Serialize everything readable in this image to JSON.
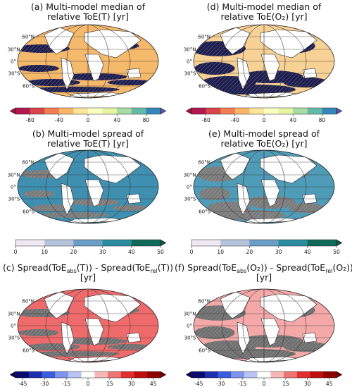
{
  "lat_labels": [
    "60°N",
    "30°N",
    "0°",
    "30°S",
    "60°S"
  ],
  "panels": [
    {
      "title_lines": [
        [
          "(a) Multi-model median of"
        ],
        [
          "relative ToE(T) [yr]"
        ]
      ],
      "ocean_color": "#f5b96c",
      "blob_color": "#1b1b4f",
      "colorbar": {
        "lim": [
          -100,
          100
        ],
        "ticks": [
          -80,
          -40,
          0,
          40,
          80
        ],
        "colors": [
          "#b2184f",
          "#d9434a",
          "#f07e4f",
          "#fbb569",
          "#fde59a",
          "#fdfdc2",
          "#e6f4a1",
          "#a9dca4",
          "#62bba8",
          "#3487bb"
        ],
        "extend": "both",
        "ext_colors": [
          "#9b1040",
          "#5e4fa2"
        ]
      }
    },
    {
      "title_lines": [
        [
          "(b) Multi-model spread of"
        ],
        [
          "relative ToE(T) [yr]"
        ]
      ],
      "ocean_color": "#3f8fb0",
      "blob_color": "#7a7a7a",
      "colorbar": {
        "lim": [
          0,
          50
        ],
        "ticks": [
          0,
          10,
          20,
          30,
          40,
          50
        ],
        "colors": [
          "#efe7f2",
          "#b6c3dc",
          "#6a9ec7",
          "#2b8c9f",
          "#0f6a5b"
        ],
        "extend": "max",
        "ext_colors": [
          "#0f6a5b",
          "#0b5546"
        ]
      }
    },
    {
      "title_lines": [
        [
          "(c) Spread(ToE",
          {
            "sub": "abs"
          },
          "(T)) - Spread(ToE",
          {
            "sub": "rel"
          },
          "(T))"
        ],
        [
          "[yr]"
        ]
      ],
      "ocean_color": "#ef6a6a",
      "blob_color": "#6f6f6f",
      "colorbar": {
        "lim": [
          -50,
          50
        ],
        "ticks": [
          -45,
          -30,
          -15,
          0,
          15,
          30,
          45
        ],
        "colors": [
          "#0a0a70",
          "#1c2fb0",
          "#3a5ee0",
          "#7d93ee",
          "#b9c4f5",
          "#ffffff",
          "#f8b7b7",
          "#ef7474",
          "#e03030",
          "#c00d0d",
          "#900000"
        ],
        "extend": "both",
        "ext_colors": [
          "#060650",
          "#6e0000"
        ]
      }
    },
    {
      "title_lines": [
        [
          "(d) Multi-model median of"
        ],
        [
          "relative ToE(O₂) [yr]"
        ]
      ],
      "ocean_color": "#f8d195",
      "blob_color": "#1b1b4f",
      "colorbar": {
        "lim": [
          -100,
          100
        ],
        "ticks": [
          -80,
          -40,
          0,
          40,
          80
        ],
        "colors": [
          "#b2184f",
          "#d9434a",
          "#f07e4f",
          "#fbb569",
          "#fde59a",
          "#fdfdc2",
          "#e6f4a1",
          "#a9dca4",
          "#62bba8",
          "#3487bb"
        ],
        "extend": "both",
        "ext_colors": [
          "#9b1040",
          "#5e4fa2"
        ]
      }
    },
    {
      "title_lines": [
        [
          "(e) Multi-model spread of"
        ],
        [
          "relative ToE(O₂) [yr]"
        ]
      ],
      "ocean_color": "#4f9cb8",
      "blob_color": "#7a7a7a",
      "colorbar": {
        "lim": [
          0,
          50
        ],
        "ticks": [
          0,
          10,
          20,
          30,
          40,
          50
        ],
        "colors": [
          "#efe7f2",
          "#b6c3dc",
          "#6a9ec7",
          "#2b8c9f",
          "#0f6a5b"
        ],
        "extend": "max",
        "ext_colors": [
          "#0f6a5b",
          "#0b5546"
        ]
      }
    },
    {
      "title_lines": [
        [
          "(f) Spread(ToE",
          {
            "sub": "abs"
          },
          "(O₂)) - Spread(ToE",
          {
            "sub": "rel"
          },
          "(O₂))"
        ],
        [
          "[yr]"
        ]
      ],
      "ocean_color": "#f4a8a8",
      "blob_color": "#6f6f6f",
      "colorbar": {
        "lim": [
          -50,
          50
        ],
        "ticks": [
          -45,
          -30,
          -15,
          0,
          15,
          30,
          45
        ],
        "colors": [
          "#0a0a70",
          "#1c2fb0",
          "#3a5ee0",
          "#7d93ee",
          "#b9c4f5",
          "#ffffff",
          "#f8b7b7",
          "#ef7474",
          "#e03030",
          "#c00d0d",
          "#900000"
        ],
        "extend": "both",
        "ext_colors": [
          "#060650",
          "#6e0000"
        ]
      }
    }
  ]
}
